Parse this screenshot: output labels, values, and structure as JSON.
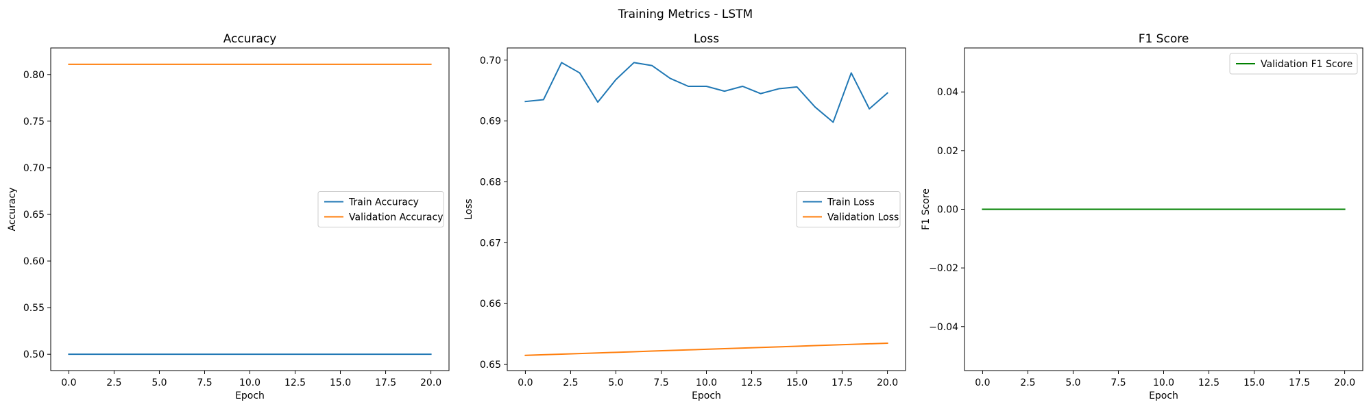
{
  "figure": {
    "title": "Training Metrics - LSTM"
  },
  "chart_data": [
    {
      "type": "line",
      "title": "Accuracy",
      "xlabel": "Epoch",
      "ylabel": "Accuracy",
      "xlim": [
        -1.0,
        21.0
      ],
      "ylim": [
        0.4825,
        0.8285
      ],
      "xticks": [
        0.0,
        2.5,
        5.0,
        7.5,
        10.0,
        12.5,
        15.0,
        17.5,
        20.0
      ],
      "xtick_labels": [
        "0.0",
        "2.5",
        "5.0",
        "7.5",
        "10.0",
        "12.5",
        "15.0",
        "17.5",
        "20.0"
      ],
      "yticks": [
        0.5,
        0.55,
        0.6,
        0.65,
        0.7,
        0.75,
        0.8
      ],
      "ytick_labels": [
        "0.50",
        "0.55",
        "0.60",
        "0.65",
        "0.70",
        "0.75",
        "0.80"
      ],
      "grid": false,
      "legend": "center-right",
      "x": [
        0,
        1,
        2,
        3,
        4,
        5,
        6,
        7,
        8,
        9,
        10,
        11,
        12,
        13,
        14,
        15,
        16,
        17,
        18,
        19,
        20
      ],
      "series": [
        {
          "name": "Train Accuracy",
          "color": "#1f77b4",
          "values": [
            0.5,
            0.5,
            0.5,
            0.5,
            0.5,
            0.5,
            0.5,
            0.5,
            0.5,
            0.5,
            0.5,
            0.5,
            0.5,
            0.5,
            0.5,
            0.5,
            0.5,
            0.5,
            0.5,
            0.5,
            0.5
          ]
        },
        {
          "name": "Validation Accuracy",
          "color": "#ff7f0e",
          "values": [
            0.811,
            0.811,
            0.811,
            0.811,
            0.811,
            0.811,
            0.811,
            0.811,
            0.811,
            0.811,
            0.811,
            0.811,
            0.811,
            0.811,
            0.811,
            0.811,
            0.811,
            0.811,
            0.811,
            0.811,
            0.811
          ]
        }
      ]
    },
    {
      "type": "line",
      "title": "Loss",
      "xlabel": "Epoch",
      "ylabel": "Loss",
      "xlim": [
        -1.0,
        21.0
      ],
      "ylim": [
        0.649,
        0.702
      ],
      "xticks": [
        0.0,
        2.5,
        5.0,
        7.5,
        10.0,
        12.5,
        15.0,
        17.5,
        20.0
      ],
      "xtick_labels": [
        "0.0",
        "2.5",
        "5.0",
        "7.5",
        "10.0",
        "12.5",
        "15.0",
        "17.5",
        "20.0"
      ],
      "yticks": [
        0.65,
        0.66,
        0.67,
        0.68,
        0.69,
        0.7
      ],
      "ytick_labels": [
        "0.65",
        "0.66",
        "0.67",
        "0.68",
        "0.69",
        "0.70"
      ],
      "grid": false,
      "legend": "center-right",
      "x": [
        0,
        1,
        2,
        3,
        4,
        5,
        6,
        7,
        8,
        9,
        10,
        11,
        12,
        13,
        14,
        15,
        16,
        17,
        18,
        19,
        20
      ],
      "series": [
        {
          "name": "Train Loss",
          "color": "#1f77b4",
          "values": [
            0.6932,
            0.6935,
            0.6996,
            0.6979,
            0.6931,
            0.6968,
            0.6996,
            0.6991,
            0.697,
            0.6957,
            0.6957,
            0.6949,
            0.6957,
            0.6945,
            0.6953,
            0.6956,
            0.6923,
            0.6898,
            0.6979,
            0.692,
            0.6946
          ]
        },
        {
          "name": "Validation Loss",
          "color": "#ff7f0e",
          "values": [
            0.6515,
            0.6516,
            0.6517,
            0.6518,
            0.6519,
            0.652,
            0.6521,
            0.6522,
            0.6523,
            0.6524,
            0.6525,
            0.6526,
            0.6527,
            0.6528,
            0.6529,
            0.653,
            0.6531,
            0.6532,
            0.6533,
            0.6534,
            0.6535
          ]
        }
      ]
    },
    {
      "type": "line",
      "title": "F1 Score",
      "xlabel": "Epoch",
      "ylabel": "F1 Score",
      "xlim": [
        -1.0,
        21.0
      ],
      "ylim": [
        -0.055,
        0.055
      ],
      "xticks": [
        0.0,
        2.5,
        5.0,
        7.5,
        10.0,
        12.5,
        15.0,
        17.5,
        20.0
      ],
      "xtick_labels": [
        "0.0",
        "2.5",
        "5.0",
        "7.5",
        "10.0",
        "12.5",
        "15.0",
        "17.5",
        "20.0"
      ],
      "yticks": [
        -0.04,
        -0.02,
        0.0,
        0.02,
        0.04
      ],
      "ytick_labels": [
        "−0.04",
        "−0.02",
        "0.00",
        "0.02",
        "0.04"
      ],
      "grid": false,
      "legend": "upper-right",
      "x": [
        0,
        1,
        2,
        3,
        4,
        5,
        6,
        7,
        8,
        9,
        10,
        11,
        12,
        13,
        14,
        15,
        16,
        17,
        18,
        19,
        20
      ],
      "series": [
        {
          "name": "Validation F1 Score",
          "color": "#008000",
          "values": [
            0,
            0,
            0,
            0,
            0,
            0,
            0,
            0,
            0,
            0,
            0,
            0,
            0,
            0,
            0,
            0,
            0,
            0,
            0,
            0,
            0
          ]
        }
      ]
    }
  ]
}
